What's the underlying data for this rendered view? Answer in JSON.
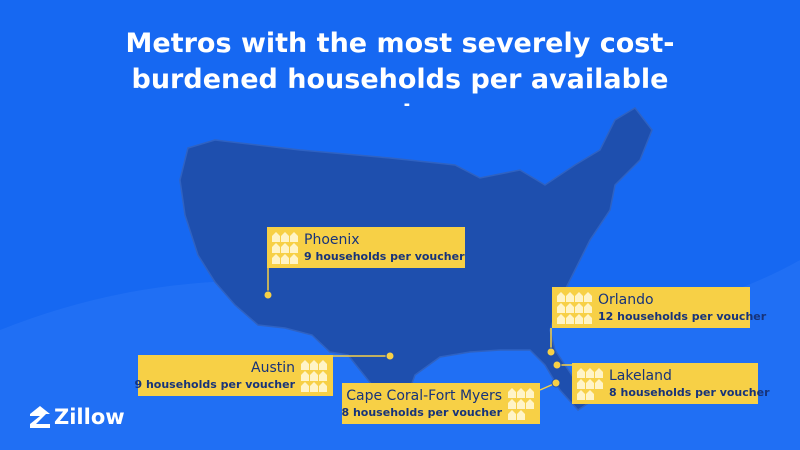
{
  "title": "Metros with the most severely cost-burdened households per available vouchers",
  "callouts": [
    {
      "name": "Phoenix",
      "households": {
        "value": 9,
        "label": "9 households per voucher"
      }
    },
    {
      "name": "Orlando",
      "households": {
        "value": 12,
        "label": "12 households per voucher"
      }
    },
    {
      "name": "Austin",
      "households": {
        "value": 9,
        "label": "9 households per voucher"
      }
    },
    {
      "name": "Lakeland",
      "households": {
        "value": 8,
        "label": "8 households per voucher"
      }
    },
    {
      "name": "Cape Coral-Fort Myers",
      "households": {
        "value": 8,
        "label": "8 households per voucher"
      }
    }
  ],
  "logo": "Zillow"
}
